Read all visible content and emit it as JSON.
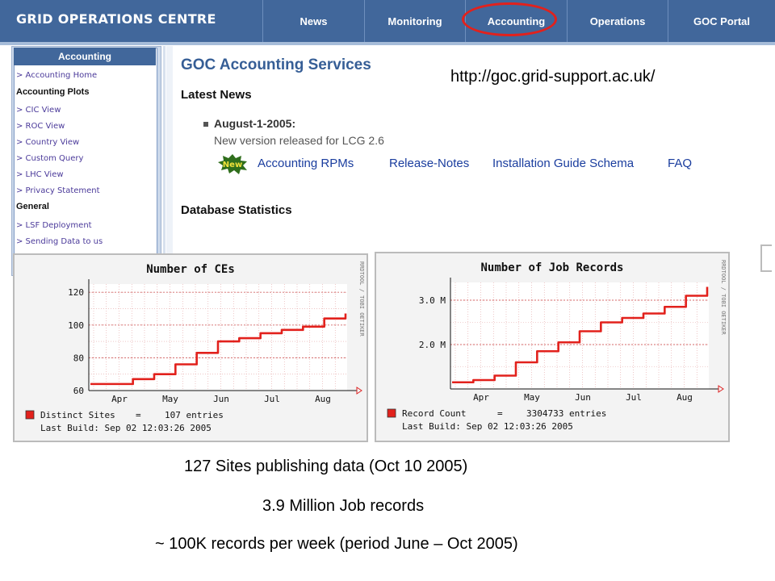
{
  "header": {
    "title": "GRID OPERATIONS CENTRE",
    "nav": [
      {
        "label": "News"
      },
      {
        "label": "Monitoring"
      },
      {
        "label": "Accounting"
      },
      {
        "label": "Operations"
      },
      {
        "label": "GOC Portal"
      }
    ],
    "highlighted_tab": "Accounting",
    "highlight_color": "#e2211c",
    "banner_color": "#41679b"
  },
  "sidebar": {
    "title": "Accounting",
    "items": [
      {
        "kind": "link",
        "label": "> Accounting Home"
      },
      {
        "kind": "heading",
        "label": "Accounting Plots"
      },
      {
        "kind": "link",
        "label": "> CIC View"
      },
      {
        "kind": "link",
        "label": "> ROC View"
      },
      {
        "kind": "link",
        "label": "> Country View"
      },
      {
        "kind": "link",
        "label": "> Custom Query"
      },
      {
        "kind": "link",
        "label": "> LHC View"
      },
      {
        "kind": "link",
        "label": "> Privacy Statement"
      },
      {
        "kind": "heading",
        "label": "General"
      },
      {
        "kind": "link",
        "label": "> LSF Deployment"
      },
      {
        "kind": "link",
        "label": "> Sending Data to us"
      }
    ]
  },
  "main": {
    "title": "GOC Accounting Services",
    "url": "http://goc.grid-support.ac.uk/",
    "latest_news_heading": "Latest News",
    "news_date": "August-1-2005:",
    "news_text": "New version released for LCG 2.6",
    "new_badge": "New",
    "news_links": [
      "Accounting RPMs",
      "Release-Notes",
      "Installation Guide Schema",
      "FAQ"
    ],
    "db_stats_heading": "Database Statistics"
  },
  "chart_data": [
    {
      "type": "line",
      "title": "Number of CEs",
      "x": [
        "Mar 15",
        "Apr 1",
        "Apr 15",
        "May 1",
        "May 15",
        "Jun 1",
        "Jun 15",
        "Jul 1",
        "Jul 15",
        "Aug 1",
        "Aug 15",
        "Aug 20",
        "Sep 2"
      ],
      "series": [
        {
          "name": "Distinct Sites",
          "color": "#e2211c",
          "values": [
            64,
            64,
            67,
            70,
            76,
            83,
            90,
            92,
            95,
            97,
            99,
            104,
            107
          ]
        }
      ],
      "categories": [
        "Apr",
        "May",
        "Jun",
        "Jul",
        "Aug"
      ],
      "yticks": [
        "120",
        "100",
        "80",
        "60"
      ],
      "ylim": [
        60,
        125
      ],
      "side_label": "RRDTOOL / TOBI OETIKER",
      "legend_entries": [
        {
          "label": "Distinct Sites",
          "value": "107 entries"
        }
      ],
      "legend_equals": "=",
      "last_build": "Last Build: Sep 02 12:03:26 2005",
      "grid": true,
      "legend": "bottom-left"
    },
    {
      "type": "line",
      "title": "Number of Job Records",
      "x": [
        "Mar 15",
        "Apr 1",
        "Apr 15",
        "May 1",
        "May 15",
        "Jun 1",
        "Jun 15",
        "Jul 1",
        "Jul 15",
        "Aug 1",
        "Aug 15",
        "Aug 25",
        "Sep 2"
      ],
      "series": [
        {
          "name": "Record Count",
          "color": "#e2211c",
          "values": [
            1.15,
            1.2,
            1.3,
            1.6,
            1.85,
            2.05,
            2.3,
            2.5,
            2.6,
            2.7,
            2.85,
            3.1,
            3.3
          ]
        }
      ],
      "categories": [
        "Apr",
        "May",
        "Jun",
        "Jul",
        "Aug"
      ],
      "yticks": [
        "3.0 M",
        "2.0 M"
      ],
      "ylim": [
        1.0,
        3.4
      ],
      "ytick_values": [
        3.0,
        2.0
      ],
      "side_label": "RRDTOOL / TOBI OETIKER",
      "legend_entries": [
        {
          "label": "Record Count",
          "value": "3304733 entries"
        }
      ],
      "legend_equals": "=",
      "last_build": "Last Build: Sep 02 12:03:26 2005",
      "grid": true,
      "legend": "bottom-left"
    }
  ],
  "bottom": {
    "line1": "127 Sites publishing data  (Oct 10 2005)",
    "line2": "3.9 Million Job records",
    "line3": "~ 100K records per week (period June – Oct 2005)"
  }
}
